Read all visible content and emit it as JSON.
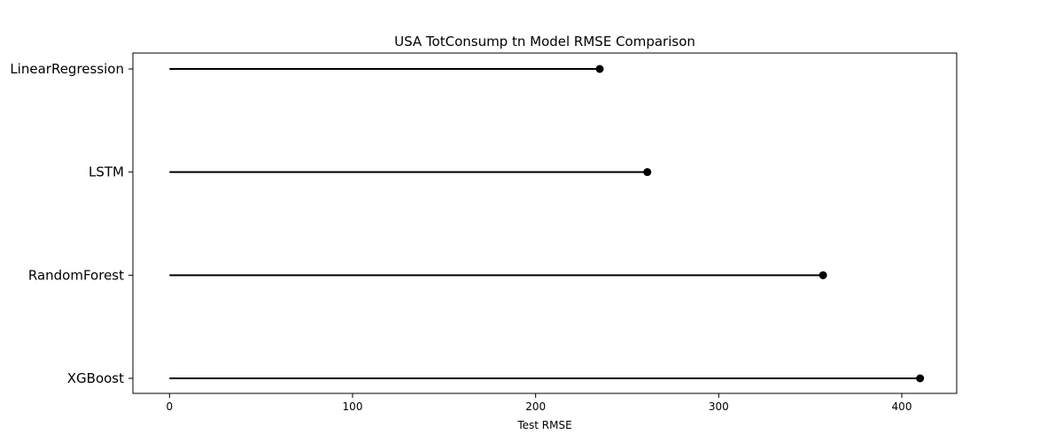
{
  "chart_data": {
    "type": "lollipop",
    "title": "USA TotConsump tn Model RMSE Comparison",
    "xlabel": "Test RMSE",
    "ylabel": "",
    "categories": [
      "LinearRegression",
      "LSTM",
      "RandomForest",
      "XGBoost"
    ],
    "values": [
      235,
      261,
      357,
      410
    ],
    "xlim": [
      -20,
      430
    ],
    "xticks": [
      0,
      100,
      200,
      300,
      400
    ],
    "grid": false,
    "color": "#000000"
  }
}
